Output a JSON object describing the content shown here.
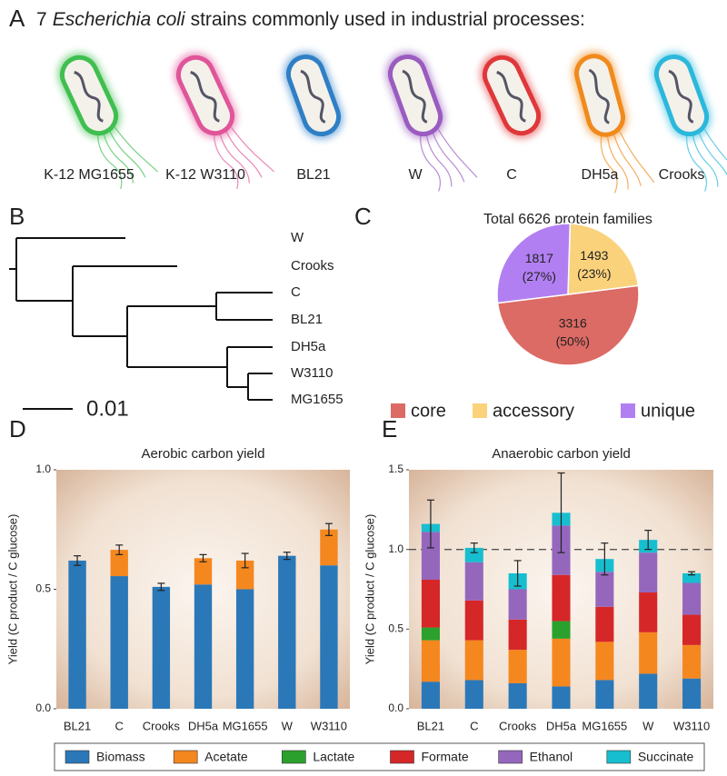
{
  "panel_labels": [
    "A",
    "B",
    "C",
    "D",
    "E"
  ],
  "panel_a": {
    "title_start": "7",
    "title_italic": "Escherichia coli",
    "title_end": "strains commonly used in industrial processes:",
    "strains": [
      "K-12 MG1655",
      "K-12 W3110",
      "BL21",
      "W",
      "C",
      "DH5a",
      "Crooks"
    ]
  },
  "panel_b": {
    "leaves": [
      "W",
      "Crooks",
      "C",
      "BL21",
      "DH5a",
      "W3110",
      "MG1655"
    ],
    "scale_label": "0.01"
  },
  "chart_data": [
    {
      "type": "pie",
      "title": "Total 6626 protein families",
      "categories": [
        "core",
        "accessory",
        "unique"
      ],
      "values": [
        3316,
        1493,
        1817
      ],
      "percent_labels": [
        "(50%)",
        "(23%)",
        "(27%)"
      ],
      "colors": [
        "#dc6a65",
        "#fbd27c",
        "#b27ff2"
      ],
      "legend": "bottom"
    },
    {
      "type": "bar",
      "stacked": true,
      "title": "Aerobic carbon yield",
      "y_label": "Yield (C product / C glucose)",
      "categories": [
        "BL21",
        "C",
        "Crooks",
        "DH5a",
        "MG1655",
        "W",
        "W3110"
      ],
      "series": [
        {
          "color": "#2b78b8",
          "values": [
            0.62,
            0.555,
            0.51,
            0.52,
            0.5,
            0.64,
            0.6
          ]
        },
        {
          "color": "#f5871f",
          "values": [
            null,
            0.11,
            null,
            0.11,
            0.12,
            null,
            0.15
          ]
        }
      ],
      "errors": [
        0.02,
        0.02,
        0.015,
        0.015,
        0.03,
        0.015,
        0.025
      ],
      "ylim": [
        0,
        1
      ],
      "yticks": [
        {
          "value": 0,
          "label": "0.0"
        },
        0.5,
        {
          "value": 1,
          "label": "1.0"
        }
      ]
    },
    {
      "type": "bar",
      "stacked": true,
      "title": "Anaerobic carbon yield",
      "y_label": "Yield (C product / C glucose)",
      "categories": [
        "BL21",
        "C",
        "Crooks",
        "DH5a",
        "MG1655",
        "W",
        "W3110"
      ],
      "series": [
        {
          "name": "Biomass",
          "color": "#2b78b8",
          "values": [
            0.17,
            0.18,
            0.16,
            0.14,
            0.18,
            0.22,
            0.19
          ]
        },
        {
          "name": "Acetate",
          "color": "#f5871f",
          "values": [
            0.26,
            0.25,
            0.21,
            0.3,
            0.24,
            0.26,
            0.21
          ]
        },
        {
          "name": "Lactate",
          "color": "#2ca02c",
          "values": [
            0.08,
            null,
            null,
            0.11,
            null,
            null,
            null
          ]
        },
        {
          "name": "Formate",
          "color": "#d62728",
          "values": [
            0.3,
            0.25,
            0.19,
            0.29,
            0.22,
            0.25,
            0.19
          ]
        },
        {
          "name": "Ethanol",
          "color": "#9467bd",
          "values": [
            0.3,
            0.24,
            0.19,
            0.31,
            0.22,
            0.25,
            0.2
          ]
        },
        {
          "name": "Succinate",
          "color": "#17becf",
          "values": [
            0.05,
            0.09,
            0.1,
            0.08,
            0.08,
            0.08,
            0.06
          ]
        }
      ],
      "errors": [
        0.15,
        0.03,
        0.08,
        0.25,
        0.1,
        0.06,
        0.01
      ],
      "reference_line": 1,
      "ylim": [
        0,
        1.5
      ],
      "yticks": [
        {
          "value": 0,
          "label": "0.0"
        },
        0.5,
        {
          "value": 1,
          "label": "1.0"
        },
        1.5
      ],
      "legend": "bottom"
    }
  ]
}
